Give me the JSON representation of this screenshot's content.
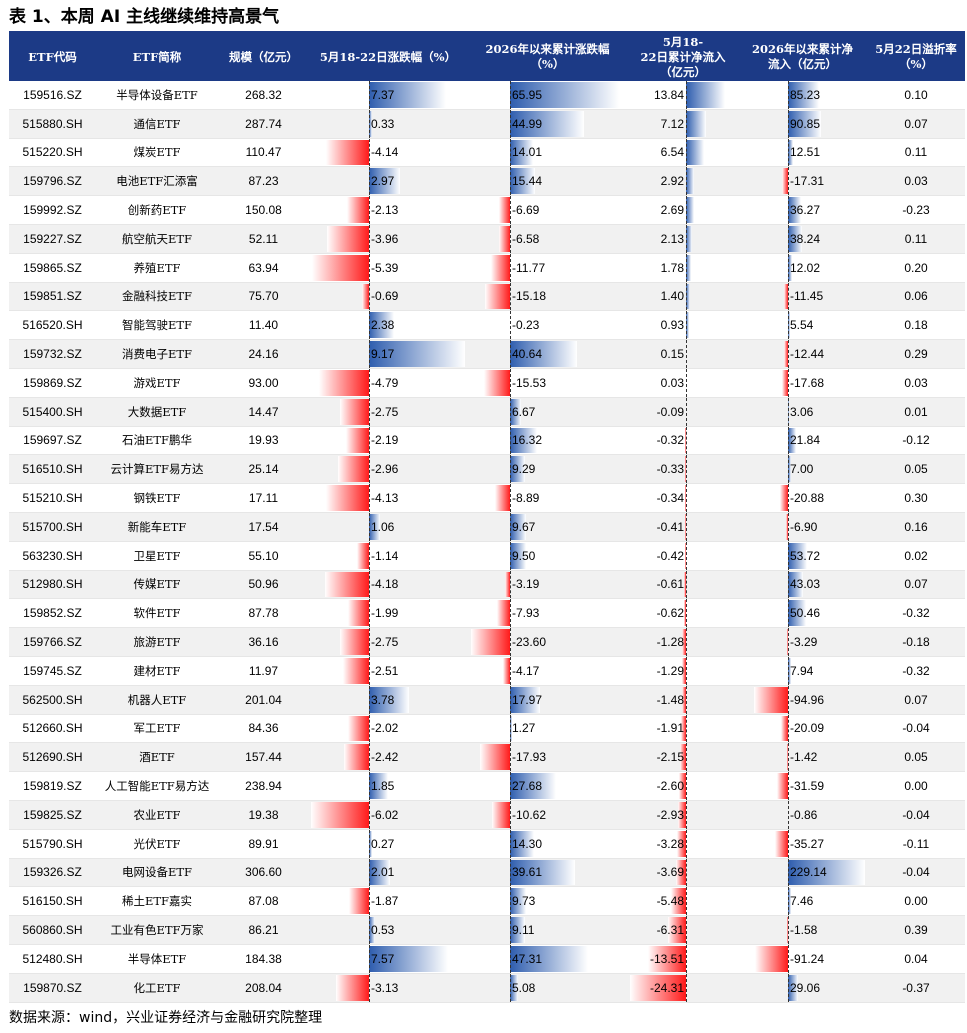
{
  "title": "表 1、本周 AI 主线继续维持高景气",
  "footer": "数据来源：wind，兴业证券经济与金融研究院整理",
  "colors": {
    "header_bg": "#1c3a86",
    "positive_bar": "#2e5dae",
    "negative_bar": "#ff1a1a"
  },
  "headers": {
    "code": "ETF代码",
    "name": "ETF简称",
    "scale": "规模（亿元）",
    "weekly_change": "5月18-22日涨跌幅（%）",
    "ytd_change": "2026年以来累计涨跌幅\n（%）",
    "weekly_inflow": "5月18-\n22日累计净流入\n（亿元）",
    "ytd_inflow": "2026年以来累计净\n流入（亿元）",
    "premium": "5月22日溢折率\n（%）"
  },
  "rows": [
    {
      "code": "159516.SZ",
      "name": "半导体设备ETF",
      "scale": "268.32",
      "weekly": 7.37,
      "ytd": 65.95,
      "winflow": 13.84,
      "yinflow": 85.23,
      "premium": "0.10"
    },
    {
      "code": "515880.SH",
      "name": "通信ETF",
      "scale": "287.74",
      "weekly": 0.33,
      "ytd": 44.99,
      "winflow": 7.12,
      "yinflow": 90.85,
      "premium": "0.07"
    },
    {
      "code": "515220.SH",
      "name": "煤炭ETF",
      "scale": "110.47",
      "weekly": -4.14,
      "ytd": 14.01,
      "winflow": 6.54,
      "yinflow": 12.51,
      "premium": "0.11"
    },
    {
      "code": "159796.SZ",
      "name": "电池ETF汇添富",
      "scale": "87.23",
      "weekly": 2.97,
      "ytd": 15.44,
      "winflow": 2.92,
      "yinflow": -17.31,
      "premium": "0.03"
    },
    {
      "code": "159992.SZ",
      "name": "创新药ETF",
      "scale": "150.08",
      "weekly": -2.13,
      "ytd": -6.69,
      "winflow": 2.69,
      "yinflow": 36.27,
      "premium": "-0.23"
    },
    {
      "code": "159227.SZ",
      "name": "航空航天ETF",
      "scale": "52.11",
      "weekly": -3.96,
      "ytd": -6.58,
      "winflow": 2.13,
      "yinflow": 38.24,
      "premium": "0.11"
    },
    {
      "code": "159865.SZ",
      "name": "养殖ETF",
      "scale": "63.94",
      "weekly": -5.39,
      "ytd": -11.77,
      "winflow": 1.78,
      "yinflow": 12.02,
      "premium": "0.20"
    },
    {
      "code": "159851.SZ",
      "name": "金融科技ETF",
      "scale": "75.70",
      "weekly": -0.69,
      "ytd": -15.18,
      "winflow": 1.4,
      "yinflow": -11.45,
      "premium": "0.06"
    },
    {
      "code": "516520.SH",
      "name": "智能驾驶ETF",
      "scale": "11.40",
      "weekly": 2.38,
      "ytd": -0.23,
      "winflow": 0.93,
      "yinflow": 5.54,
      "premium": "0.18"
    },
    {
      "code": "159732.SZ",
      "name": "消费电子ETF",
      "scale": "24.16",
      "weekly": 9.17,
      "ytd": 40.64,
      "winflow": 0.15,
      "yinflow": -12.44,
      "premium": "0.29"
    },
    {
      "code": "159869.SZ",
      "name": "游戏ETF",
      "scale": "93.00",
      "weekly": -4.79,
      "ytd": -15.53,
      "winflow": 0.03,
      "yinflow": -17.68,
      "premium": "0.03"
    },
    {
      "code": "515400.SH",
      "name": "大数据ETF",
      "scale": "14.47",
      "weekly": -2.75,
      "ytd": 6.67,
      "winflow": -0.09,
      "yinflow": 3.06,
      "premium": "0.01"
    },
    {
      "code": "159697.SZ",
      "name": "石油ETF鹏华",
      "scale": "19.93",
      "weekly": -2.19,
      "ytd": 16.32,
      "winflow": -0.32,
      "yinflow": 21.84,
      "premium": "-0.12"
    },
    {
      "code": "516510.SH",
      "name": "云计算ETF易方达",
      "scale": "25.14",
      "weekly": -2.96,
      "ytd": 9.29,
      "winflow": -0.33,
      "yinflow": 7.0,
      "premium": "0.05"
    },
    {
      "code": "515210.SH",
      "name": "钢铁ETF",
      "scale": "17.11",
      "weekly": -4.13,
      "ytd": -8.89,
      "winflow": -0.34,
      "yinflow": -20.88,
      "premium": "0.30"
    },
    {
      "code": "515700.SH",
      "name": "新能车ETF",
      "scale": "17.54",
      "weekly": 1.06,
      "ytd": 9.67,
      "winflow": -0.41,
      "yinflow": -6.9,
      "premium": "0.16"
    },
    {
      "code": "563230.SH",
      "name": "卫星ETF",
      "scale": "55.10",
      "weekly": -1.14,
      "ytd": 9.5,
      "winflow": -0.42,
      "yinflow": 53.72,
      "premium": "0.02"
    },
    {
      "code": "512980.SH",
      "name": "传媒ETF",
      "scale": "50.96",
      "weekly": -4.18,
      "ytd": -3.19,
      "winflow": -0.61,
      "yinflow": 43.03,
      "premium": "0.07"
    },
    {
      "code": "159852.SZ",
      "name": "软件ETF",
      "scale": "87.78",
      "weekly": -1.99,
      "ytd": -7.93,
      "winflow": -0.62,
      "yinflow": 50.46,
      "premium": "-0.32"
    },
    {
      "code": "159766.SZ",
      "name": "旅游ETF",
      "scale": "36.16",
      "weekly": -2.75,
      "ytd": -23.6,
      "winflow": -1.28,
      "yinflow": -3.29,
      "premium": "-0.18"
    },
    {
      "code": "159745.SZ",
      "name": "建材ETF",
      "scale": "11.97",
      "weekly": -2.51,
      "ytd": -4.17,
      "winflow": -1.29,
      "yinflow": 7.94,
      "premium": "-0.32"
    },
    {
      "code": "562500.SH",
      "name": "机器人ETF",
      "scale": "201.04",
      "weekly": 3.78,
      "ytd": 17.97,
      "winflow": -1.48,
      "yinflow": -94.96,
      "premium": "0.07"
    },
    {
      "code": "512660.SH",
      "name": "军工ETF",
      "scale": "84.36",
      "weekly": -2.02,
      "ytd": 1.27,
      "winflow": -1.91,
      "yinflow": -20.09,
      "premium": "-0.04"
    },
    {
      "code": "512690.SH",
      "name": "酒ETF",
      "scale": "157.44",
      "weekly": -2.42,
      "ytd": -17.93,
      "winflow": -2.15,
      "yinflow": -1.42,
      "premium": "0.05"
    },
    {
      "code": "159819.SZ",
      "name": "人工智能ETF易方达",
      "scale": "238.94",
      "weekly": 1.85,
      "ytd": 27.68,
      "winflow": -2.6,
      "yinflow": -31.59,
      "premium": "0.00"
    },
    {
      "code": "159825.SZ",
      "name": "农业ETF",
      "scale": "19.38",
      "weekly": -6.02,
      "ytd": -10.62,
      "winflow": -2.93,
      "yinflow": -0.86,
      "premium": "-0.04"
    },
    {
      "code": "515790.SH",
      "name": "光伏ETF",
      "scale": "89.91",
      "weekly": 0.27,
      "ytd": 14.3,
      "winflow": -3.28,
      "yinflow": -35.27,
      "premium": "-0.11"
    },
    {
      "code": "159326.SZ",
      "name": "电网设备ETF",
      "scale": "306.60",
      "weekly": 2.01,
      "ytd": 39.61,
      "winflow": -3.69,
      "yinflow": 229.14,
      "premium": "-0.04"
    },
    {
      "code": "516150.SH",
      "name": "稀土ETF嘉实",
      "scale": "87.08",
      "weekly": -1.87,
      "ytd": 9.73,
      "winflow": -5.48,
      "yinflow": 7.46,
      "premium": "0.00"
    },
    {
      "code": "560860.SH",
      "name": "工业有色ETF万家",
      "scale": "86.21",
      "weekly": 0.53,
      "ytd": 9.11,
      "winflow": -6.31,
      "yinflow": -1.58,
      "premium": "0.39"
    },
    {
      "code": "512480.SH",
      "name": "半导体ETF",
      "scale": "184.38",
      "weekly": 7.57,
      "ytd": 47.31,
      "winflow": -13.51,
      "yinflow": -91.24,
      "premium": "0.04"
    },
    {
      "code": "159870.SZ",
      "name": "化工ETF",
      "scale": "208.04",
      "weekly": -3.13,
      "ytd": 5.08,
      "winflow": -24.31,
      "yinflow": 29.06,
      "premium": "-0.37"
    }
  ]
}
